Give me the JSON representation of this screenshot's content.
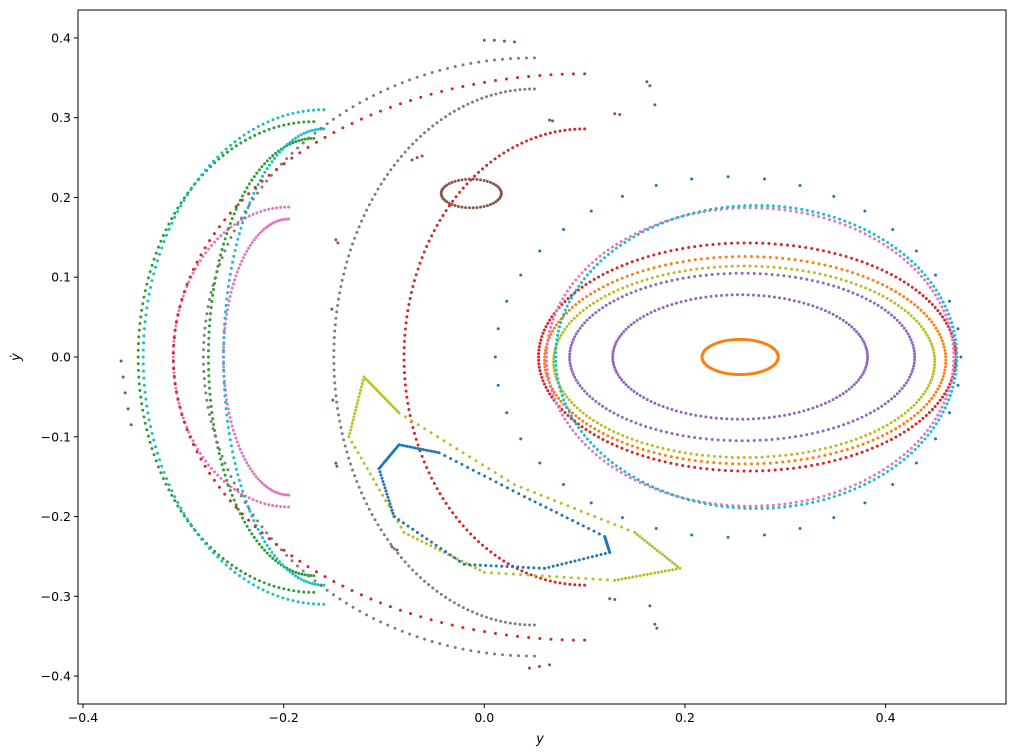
{
  "chart_data": {
    "type": "scatter",
    "title": "",
    "xlabel": "y",
    "ylabel": "ẏ",
    "xlim": [
      -0.405,
      0.52
    ],
    "ylim": [
      -0.435,
      0.435
    ],
    "xticks": [
      -0.4,
      -0.2,
      0.0,
      0.2,
      0.4
    ],
    "xtick_labels": [
      "−0.4",
      "−0.2",
      "0.0",
      "0.2",
      "0.4"
    ],
    "yticks": [
      -0.4,
      -0.3,
      -0.2,
      -0.1,
      0.0,
      0.1,
      0.2,
      0.3,
      0.4
    ],
    "ytick_labels": [
      "−0.4",
      "−0.3",
      "−0.2",
      "−0.1",
      "0.0",
      "0.1",
      "0.2",
      "0.3",
      "0.4"
    ],
    "grid": false,
    "legend": "none",
    "series": [
      {
        "color": "#ff7f0e",
        "kind": "ellipse",
        "center": [
          0.255,
          0.0
        ],
        "rx": 0.038,
        "ry": 0.022,
        "n": 160
      },
      {
        "color": "#9467bd",
        "kind": "ellipse",
        "center": [
          0.255,
          0.0
        ],
        "rx": 0.127,
        "ry": 0.078,
        "n": 150
      },
      {
        "color": "#9467bd",
        "kind": "ellipse",
        "center": [
          0.257,
          0.0
        ],
        "rx": 0.172,
        "ry": 0.105,
        "n": 180
      },
      {
        "color": "#bcbd22",
        "kind": "ellipse",
        "center": [
          0.259,
          -0.006
        ],
        "rx": 0.19,
        "ry": 0.12,
        "n": 200
      },
      {
        "color": "#ff7f0e",
        "kind": "ellipse",
        "center": [
          0.26,
          -0.004
        ],
        "rx": 0.2,
        "ry": 0.13,
        "n": 200
      },
      {
        "color": "#d62728",
        "kind": "ellipse",
        "center": [
          0.262,
          0.0
        ],
        "rx": 0.208,
        "ry": 0.143,
        "n": 210
      },
      {
        "color": "#e377c2",
        "kind": "ellipse",
        "center": [
          0.265,
          0.0
        ],
        "rx": 0.203,
        "ry": 0.187,
        "n": 220
      },
      {
        "color": "#17becf",
        "kind": "ellipse",
        "center": [
          0.271,
          0.0
        ],
        "rx": 0.2,
        "ry": 0.19,
        "n": 220
      },
      {
        "color": "#1f77b4",
        "kind": "ellipse",
        "center": [
          0.243,
          0.0
        ],
        "rx": 0.232,
        "ry": 0.226,
        "n": 40
      },
      {
        "color": "#e377c2",
        "kind": "banana",
        "center": [
          -0.195,
          0.0
        ],
        "rx": 0.115,
        "hy": 0.188,
        "thick": 0.05,
        "n": 180
      },
      {
        "color": "#2ca02c",
        "kind": "banana",
        "center": [
          -0.17,
          0.0
        ],
        "rx": 0.175,
        "hy": 0.295,
        "thick": 0.07,
        "n": 220
      },
      {
        "color": "#17becf",
        "kind": "banana",
        "center": [
          -0.16,
          0.0
        ],
        "rx": 0.18,
        "hy": 0.31,
        "thick": 0.08,
        "n": 220
      },
      {
        "color": "#7f7f7f",
        "kind": "banana",
        "center": [
          0.05,
          0.0
        ],
        "rx": 0.33,
        "hy": 0.375,
        "thick": 0.13,
        "n": 260
      },
      {
        "color": "#d62728",
        "kind": "banana",
        "center": [
          0.1,
          0.0
        ],
        "rx": 0.41,
        "hy": 0.355,
        "thick": 0.23,
        "n": 230
      },
      {
        "color": "#8c564b",
        "kind": "ellipse",
        "center": [
          -0.013,
          0.205
        ],
        "rx": 0.03,
        "ry": 0.018,
        "n": 50
      },
      {
        "color": "#bcbd22",
        "kind": "loop",
        "points": [
          [
            -0.12,
            -0.025
          ],
          [
            -0.085,
            -0.07
          ],
          [
            0.03,
            -0.16
          ],
          [
            0.15,
            -0.22
          ],
          [
            0.195,
            -0.265
          ],
          [
            0.13,
            -0.28
          ],
          [
            0.0,
            -0.27
          ],
          [
            -0.08,
            -0.22
          ],
          [
            -0.135,
            -0.1
          ],
          [
            -0.12,
            -0.025
          ]
        ],
        "n": 170
      },
      {
        "color": "#1f77b4",
        "kind": "loop",
        "points": [
          [
            -0.085,
            -0.11
          ],
          [
            -0.045,
            -0.12
          ],
          [
            0.04,
            -0.175
          ],
          [
            0.12,
            -0.225
          ],
          [
            0.125,
            -0.245
          ],
          [
            0.06,
            -0.265
          ],
          [
            -0.02,
            -0.26
          ],
          [
            -0.09,
            -0.2
          ],
          [
            -0.105,
            -0.14
          ],
          [
            -0.085,
            -0.11
          ]
        ],
        "n": 140
      },
      {
        "color": "#8c564b",
        "kind": "points",
        "points": [
          [
            -0.362,
            -0.005
          ],
          [
            -0.36,
            -0.025
          ],
          [
            -0.358,
            -0.045
          ],
          [
            -0.355,
            -0.065
          ],
          [
            -0.352,
            -0.085
          ],
          [
            0.0,
            0.397
          ],
          [
            0.01,
            0.397
          ],
          [
            0.02,
            0.396
          ],
          [
            0.03,
            0.395
          ],
          [
            0.045,
            -0.39
          ],
          [
            0.055,
            -0.388
          ],
          [
            0.065,
            -0.386
          ],
          [
            0.065,
            0.297
          ],
          [
            0.068,
            0.296
          ],
          [
            0.13,
            0.305
          ],
          [
            0.135,
            0.304
          ],
          [
            0.162,
            0.345
          ],
          [
            0.165,
            0.34
          ],
          [
            0.17,
            0.316
          ],
          [
            -0.072,
            0.247
          ],
          [
            -0.067,
            0.25
          ],
          [
            -0.062,
            0.252
          ],
          [
            -0.148,
            0.147
          ],
          [
            -0.146,
            0.143
          ],
          [
            -0.152,
            0.06
          ],
          [
            -0.151,
            -0.054
          ],
          [
            -0.148,
            -0.133
          ],
          [
            -0.147,
            -0.137
          ],
          [
            -0.092,
            -0.238
          ],
          [
            -0.087,
            -0.242
          ],
          [
            0.125,
            -0.303
          ],
          [
            0.13,
            -0.304
          ],
          [
            0.165,
            -0.312
          ],
          [
            0.17,
            -0.335
          ],
          [
            0.172,
            -0.34
          ]
        ]
      }
    ]
  }
}
